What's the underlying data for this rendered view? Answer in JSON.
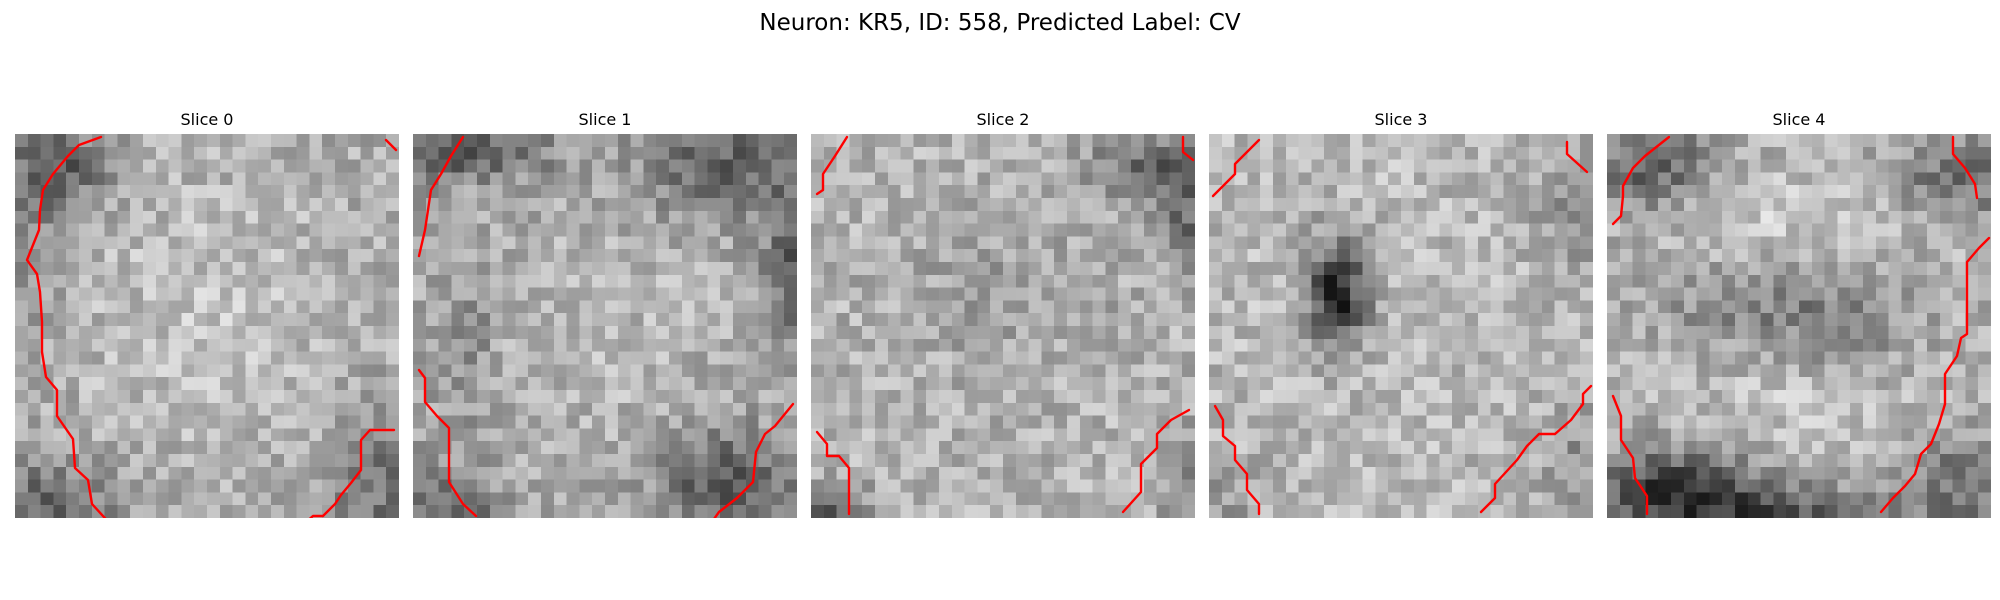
{
  "figure": {
    "title": "Neuron: KR5, ID: 558, Predicted Label: CV",
    "contour_color": "#ff0000",
    "colormap": "gray",
    "slices": [
      {
        "label": "Slice 0"
      },
      {
        "label": "Slice 1"
      },
      {
        "label": "Slice 2"
      },
      {
        "label": "Slice 3"
      },
      {
        "label": "Slice 4"
      }
    ]
  }
}
